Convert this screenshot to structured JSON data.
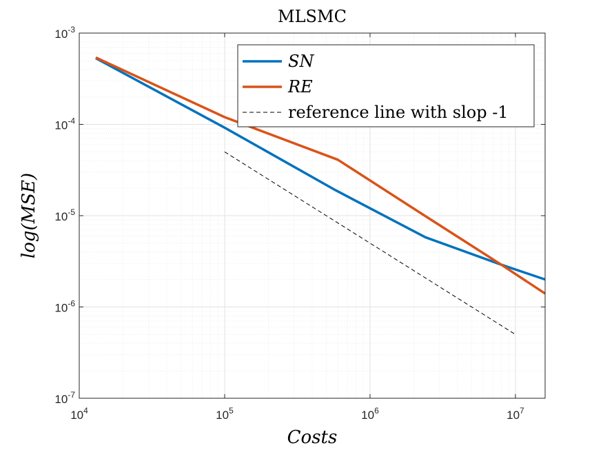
{
  "chart_data": {
    "type": "line",
    "title": "MLSMC",
    "xlabel": "Costs",
    "ylabel": "log(MSE)",
    "x_scale": "log",
    "y_scale": "log",
    "xlim": [
      10000,
      16000000
    ],
    "ylim": [
      1e-07,
      0.001
    ],
    "grid": true,
    "minor_grid": true,
    "legend_position": "top-right",
    "x_ticks": [
      {
        "value": 10000,
        "base": "10",
        "exp": "4"
      },
      {
        "value": 100000,
        "base": "10",
        "exp": "5"
      },
      {
        "value": 1000000,
        "base": "10",
        "exp": "6"
      },
      {
        "value": 10000000,
        "base": "10",
        "exp": "7"
      }
    ],
    "y_ticks": [
      {
        "value": 1e-07,
        "base": "10",
        "exp": "-7"
      },
      {
        "value": 1e-06,
        "base": "10",
        "exp": "-6"
      },
      {
        "value": 1e-05,
        "base": "10",
        "exp": "-5"
      },
      {
        "value": 0.0001,
        "base": "10",
        "exp": "-4"
      },
      {
        "value": 0.001,
        "base": "10",
        "exp": "-3"
      }
    ],
    "series": [
      {
        "name": "SN",
        "color": "#0072BD",
        "style": "solid",
        "x": [
          13000,
          100000,
          580000,
          2400000,
          8000000,
          16000000
        ],
        "y": [
          0.00053,
          9.2e-05,
          1.9e-05,
          5.8e-06,
          2.9e-06,
          2e-06
        ]
      },
      {
        "name": "RE",
        "color": "#D95319",
        "style": "solid",
        "x": [
          13000,
          100000,
          600000,
          2400000,
          8000000,
          16000000
        ],
        "y": [
          0.00054,
          0.00012,
          4.1e-05,
          9.9e-06,
          2.9e-06,
          1.4e-06
        ]
      },
      {
        "name": "reference line with slop -1",
        "color": "#000000",
        "style": "dashed",
        "x": [
          100000,
          10000000
        ],
        "y": [
          5e-05,
          5e-07
        ]
      }
    ]
  }
}
